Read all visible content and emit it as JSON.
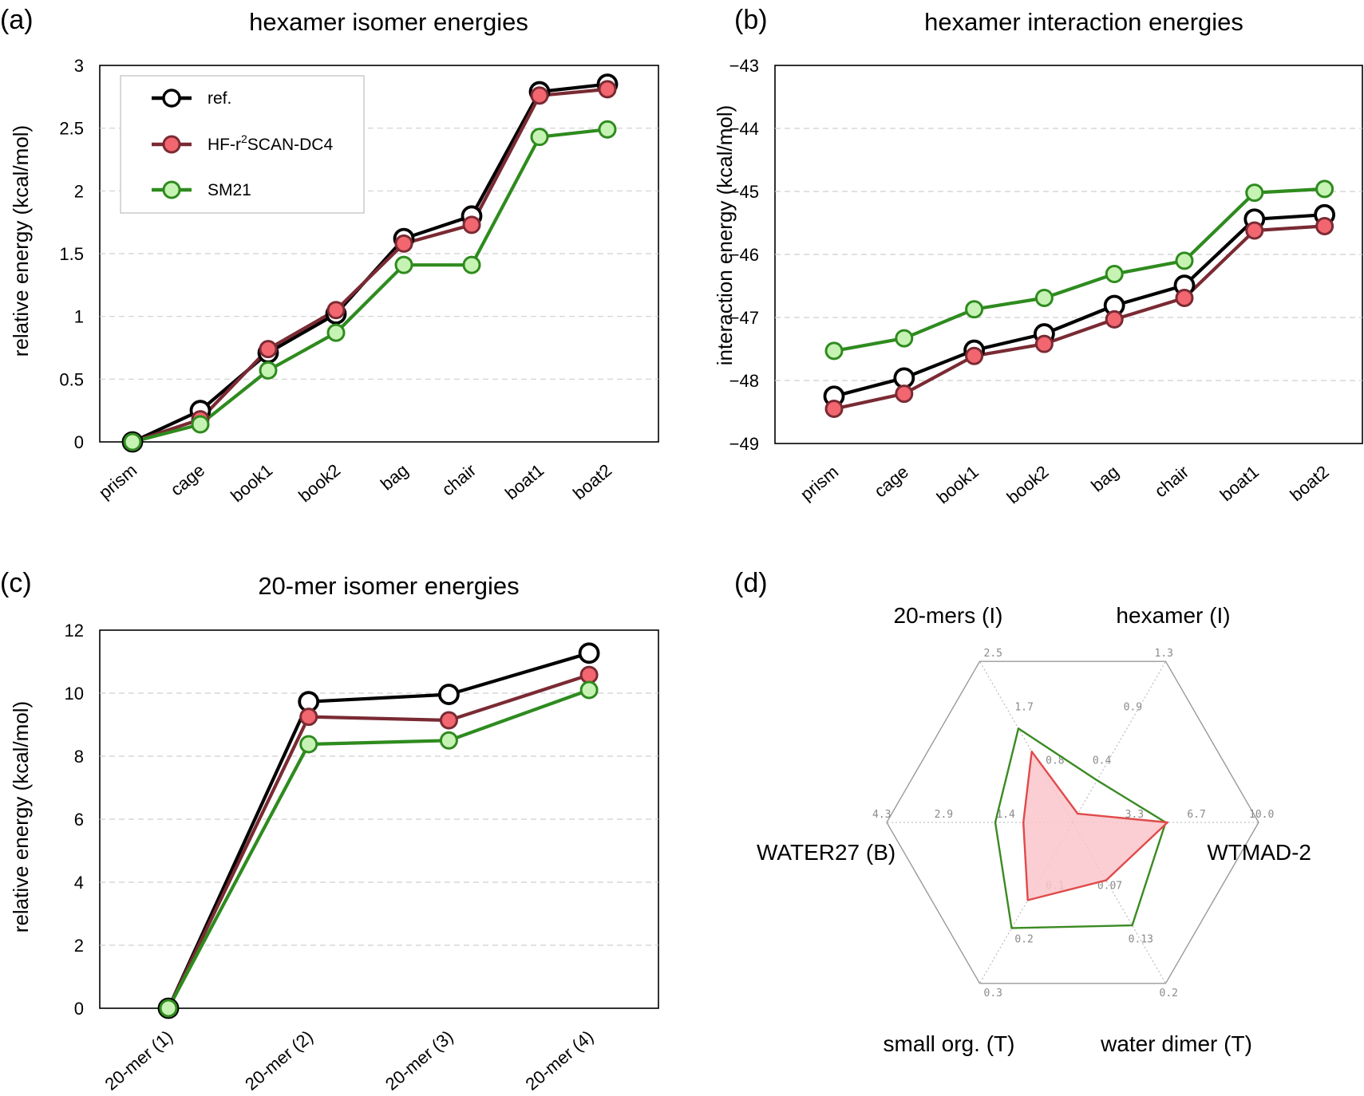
{
  "colors": {
    "ref": "#000000",
    "hf": "#7a2a33",
    "hf_fill": "#f26670",
    "sm21": "#2e8b1e",
    "sm21_fill": "#c6f3b3",
    "radar_hf": "#e04a4a",
    "radar_hf_fill": "#f9c6ca",
    "radar_sm21": "#3a8a22",
    "radar_frame": "#9a9a9a"
  },
  "chart_data": [
    {
      "panel": "(a)",
      "type": "line",
      "title": "hexamer isomer energies",
      "xlabel": "",
      "ylabel": "relative energy (kcal/mol)",
      "categories": [
        "prism",
        "cage",
        "book1",
        "book2",
        "bag",
        "chair",
        "boat1",
        "boat2"
      ],
      "ylim": [
        0,
        3
      ],
      "yticks": [
        0,
        0.5,
        1,
        1.5,
        2,
        2.5,
        3
      ],
      "ytick_labels": [
        "0",
        "0.5",
        "1",
        "1.5",
        "2",
        "2.5",
        "3"
      ],
      "grid": true,
      "legend": {
        "position": "top-left",
        "entries": [
          "ref.",
          "HF-r²SCAN-DC4",
          "SM21"
        ]
      },
      "series": [
        {
          "name": "ref.",
          "values": [
            0,
            0.25,
            0.71,
            1.02,
            1.62,
            1.8,
            2.79,
            2.85
          ]
        },
        {
          "name": "HF-r²SCAN-DC4",
          "values": [
            0,
            0.18,
            0.74,
            1.05,
            1.58,
            1.73,
            2.76,
            2.81
          ]
        },
        {
          "name": "SM21",
          "values": [
            0,
            0.14,
            0.57,
            0.87,
            1.41,
            1.41,
            2.43,
            2.49
          ]
        }
      ]
    },
    {
      "panel": "(b)",
      "type": "line",
      "title": "hexamer interaction energies",
      "xlabel": "",
      "ylabel": "interaction energy (kcal/mol)",
      "categories": [
        "prism",
        "cage",
        "book1",
        "book2",
        "bag",
        "chair",
        "boat1",
        "boat2"
      ],
      "ylim": [
        -49,
        -43
      ],
      "yticks": [
        -49,
        -48,
        -47,
        -46,
        -45,
        -44,
        -43
      ],
      "ytick_labels": [
        "−49",
        "−48",
        "−47",
        "−46",
        "−45",
        "−44",
        "−43"
      ],
      "grid": true,
      "series": [
        {
          "name": "ref.",
          "values": [
            -48.25,
            -47.96,
            -47.52,
            -47.26,
            -46.81,
            -46.49,
            -45.44,
            -45.37
          ]
        },
        {
          "name": "HF-r²SCAN-DC4",
          "values": [
            -48.45,
            -48.21,
            -47.61,
            -47.42,
            -47.03,
            -46.69,
            -45.62,
            -45.55
          ]
        },
        {
          "name": "SM21",
          "values": [
            -47.53,
            -47.33,
            -46.87,
            -46.69,
            -46.31,
            -46.1,
            -45.02,
            -44.96
          ]
        }
      ]
    },
    {
      "panel": "(c)",
      "type": "line",
      "title": "20-mer isomer energies",
      "xlabel": "",
      "ylabel": "relative energy (kcal/mol)",
      "categories": [
        "20-mer (1)",
        "20-mer (2)",
        "20-mer (3)",
        "20-mer (4)"
      ],
      "ylim": [
        0,
        12
      ],
      "yticks": [
        0,
        2,
        4,
        6,
        8,
        10,
        12
      ],
      "ytick_labels": [
        "0",
        "2",
        "4",
        "6",
        "8",
        "10",
        "12"
      ],
      "grid": true,
      "series": [
        {
          "name": "ref.",
          "values": [
            0,
            9.73,
            9.96,
            11.27
          ]
        },
        {
          "name": "HF-r²SCAN-DC4",
          "values": [
            0,
            9.25,
            9.14,
            10.58
          ]
        },
        {
          "name": "SM21",
          "values": [
            0,
            8.38,
            8.5,
            10.1
          ]
        }
      ]
    },
    {
      "panel": "(d)",
      "type": "radar",
      "axes": [
        {
          "name": "WTMAD-2",
          "max": 10.0,
          "ticks": [
            "3.3",
            "6.7",
            "10.0"
          ]
        },
        {
          "name": "hexamer (I)",
          "max": 1.3,
          "ticks": [
            "0.4",
            "0.9",
            "1.3"
          ]
        },
        {
          "name": "20-mers (I)",
          "max": 2.5,
          "ticks": [
            "0.8",
            "1.7",
            "2.5"
          ]
        },
        {
          "name": "WATER27 (B)",
          "max": 4.3,
          "ticks": [
            "1.4",
            "2.9",
            "4.3"
          ]
        },
        {
          "name": "small org. (T)",
          "max": 0.3,
          "ticks": [
            "0.1",
            "0.2",
            "0.3"
          ]
        },
        {
          "name": "water dimer (T)",
          "max": 0.2,
          "ticks": [
            "0.07",
            "0.13",
            "0.2"
          ]
        }
      ],
      "series": [
        {
          "name": "HF-r²SCAN-DC4",
          "values": [
            5.1,
            0.07,
            1.1,
            1.14,
            0.145,
            0.072
          ]
        },
        {
          "name": "SM21",
          "values": [
            5.0,
            0.34,
            1.46,
            1.79,
            0.197,
            0.128
          ]
        }
      ]
    }
  ]
}
